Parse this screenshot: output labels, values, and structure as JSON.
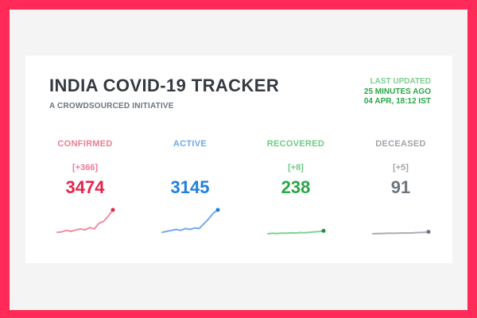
{
  "colors": {
    "frame": "#ff2a57",
    "confirmed": "#e8234a",
    "active": "#1f7fe0",
    "recovered": "#28a745",
    "deceased": "#6c757d"
  },
  "header": {
    "title": "INDIA COVID-19 TRACKER",
    "subtitle": "A CROWDSOURCED INITIATIVE"
  },
  "last_updated": {
    "label": "LAST UPDATED",
    "relative": "25 MINUTES AGO",
    "timestamp": "04 APR, 18:12 IST"
  },
  "stats": [
    {
      "key": "confirmed",
      "label": "CONFIRMED",
      "delta": "[+366]",
      "count": "3474",
      "label_color": "#ee7c94",
      "count_color": "#e8234a",
      "line_color": "#f28da2",
      "dot_color": "#e8234a",
      "trend": [
        0.06,
        0.08,
        0.14,
        0.1,
        0.16,
        0.2,
        0.16,
        0.26,
        0.2,
        0.44,
        0.52,
        0.74,
        1.0
      ]
    },
    {
      "key": "active",
      "label": "ACTIVE",
      "delta": "",
      "count": "3145",
      "label_color": "#6ea8ec",
      "count_color": "#1f7fe0",
      "line_color": "#72aaee",
      "dot_color": "#1f7fe0",
      "trend": [
        0.06,
        0.1,
        0.14,
        0.18,
        0.14,
        0.22,
        0.18,
        0.24,
        0.22,
        0.42,
        0.62,
        0.86,
        1.0
      ]
    },
    {
      "key": "recovered",
      "label": "RECOVERED",
      "delta": "[+8]",
      "count": "238",
      "label_color": "#6fcb84",
      "count_color": "#28a745",
      "line_color": "#7dd48f",
      "dot_color": "#1e8f3a",
      "trend": [
        0.0,
        0.02,
        0.01,
        0.03,
        0.02,
        0.04,
        0.03,
        0.05,
        0.04,
        0.06,
        0.08,
        0.09,
        0.12
      ]
    },
    {
      "key": "deceased",
      "label": "DECEASED",
      "delta": "[+5]",
      "count": "91",
      "label_color": "#a0a6ac",
      "count_color": "#6c757d",
      "line_color": "#a9adb2",
      "dot_color": "#6c757d",
      "trend": [
        0.0,
        0.01,
        0.01,
        0.02,
        0.02,
        0.02,
        0.03,
        0.03,
        0.03,
        0.04,
        0.05,
        0.06,
        0.08
      ]
    }
  ]
}
